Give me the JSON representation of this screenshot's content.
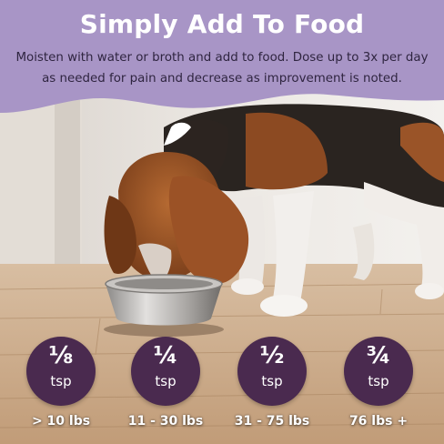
{
  "header": {
    "title": "Simply Add To Food",
    "instructions": "Moisten with water or broth and add to food. Dose up to 3x per day as needed for pain and decrease as improvement is noted."
  },
  "dosages": [
    {
      "amount": "⅛",
      "unit": "tsp",
      "weight": "> 10 lbs"
    },
    {
      "amount": "¼",
      "unit": "tsp",
      "weight": "11 - 30 lbs"
    },
    {
      "amount": "½",
      "unit": "tsp",
      "weight": "31 - 75 lbs"
    },
    {
      "amount": "¾",
      "unit": "tsp",
      "weight": "76 lbs +"
    }
  ],
  "colors": {
    "banner": "#a895c6",
    "badge": "#4a2a4f",
    "floor": "#c9a987"
  }
}
